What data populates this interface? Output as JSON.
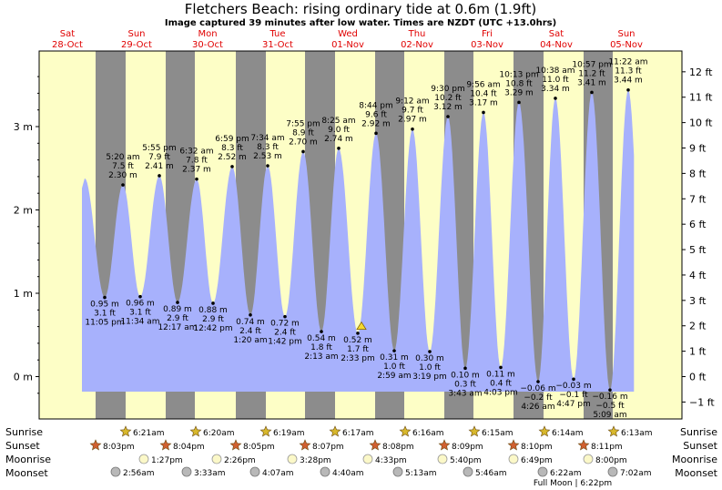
{
  "title": "Fletchers Beach: rising  ordinary tide at 0.6m (1.9ft)",
  "subtitle": "Image captured 39 minutes after low water. Times are NZDT (UTC +13.0hrs)",
  "days": [
    {
      "dow": "Sat",
      "date": "28-Oct"
    },
    {
      "dow": "Sun",
      "date": "29-Oct"
    },
    {
      "dow": "Mon",
      "date": "30-Oct"
    },
    {
      "dow": "Tue",
      "date": "31-Oct"
    },
    {
      "dow": "Wed",
      "date": "01-Nov"
    },
    {
      "dow": "Thu",
      "date": "02-Nov"
    },
    {
      "dow": "Fri",
      "date": "03-Nov"
    },
    {
      "dow": "Sat",
      "date": "04-Nov"
    },
    {
      "dow": "Sun",
      "date": "05-Nov"
    }
  ],
  "left_axis_ticks": [
    "3 m",
    "2 m",
    "1 m",
    "0 m"
  ],
  "right_axis_ticks": [
    "12 ft",
    "11 ft",
    "10 ft",
    "9 ft",
    "8 ft",
    "7 ft",
    "6 ft",
    "5 ft",
    "4 ft",
    "3 ft",
    "2 ft",
    "1 ft",
    "0 ft",
    "−1 ft"
  ],
  "row_labels": {
    "sunrise": "Sunrise",
    "sunset": "Sunset",
    "moonrise": "Moonrise",
    "moonset": "Moonset"
  },
  "sunrise": [
    "6:21am",
    "6:20am",
    "6:19am",
    "6:17am",
    "6:16am",
    "6:15am",
    "6:14am",
    "6:13am"
  ],
  "sunset": [
    "8:03pm",
    "8:04pm",
    "8:05pm",
    "8:07pm",
    "8:08pm",
    "8:09pm",
    "8:10pm",
    "8:11pm"
  ],
  "moonrise": [
    "1:27pm",
    "2:26pm",
    "3:28pm",
    "4:33pm",
    "5:40pm",
    "6:49pm",
    "8:00pm"
  ],
  "moonset": [
    "2:56am",
    "3:33am",
    "4:07am",
    "4:40am",
    "5:13am",
    "5:46am",
    "6:22am",
    "7:02am"
  ],
  "full_moon": "Full Moon | 6:22pm",
  "colors": {
    "water": "#a7b1fc",
    "day_bg": "#fdfec6",
    "night_bg": "#8c8c8c",
    "sun": "#d8b82c",
    "sunset": "#d06030",
    "day_text": "#e00000"
  },
  "chart_data": {
    "type": "area",
    "title": "Fletchers Beach: rising  ordinary tide at 0.6m (1.9ft)",
    "ylabel": "",
    "ylim_m": [
      -0.2,
      3.95
    ],
    "current": {
      "height_m": 0.6,
      "height_ft": 1.9,
      "state": "rising"
    },
    "extrema": [
      {
        "type": "high",
        "time": "",
        "height_m": 2.38,
        "label": ""
      },
      {
        "type": "low",
        "time": "11:05 pm",
        "height_m": 0.95,
        "ft": "3.1 ft"
      },
      {
        "type": "high",
        "time": "5:20 am",
        "height_m": 2.3,
        "ft": "7.5 ft"
      },
      {
        "type": "low",
        "time": "11:34 am",
        "height_m": 0.96,
        "ft": "3.1 ft"
      },
      {
        "type": "high",
        "time": "5:55 pm",
        "height_m": 2.41,
        "ft": "7.9 ft"
      },
      {
        "type": "low",
        "time": "12:17 am",
        "height_m": 0.89,
        "ft": "2.9 ft"
      },
      {
        "type": "high",
        "time": "6:32 am",
        "height_m": 2.37,
        "ft": "7.8 ft"
      },
      {
        "type": "low",
        "time": "12:42 pm",
        "height_m": 0.88,
        "ft": "2.9 ft"
      },
      {
        "type": "high",
        "time": "6:59 pm",
        "height_m": 2.52,
        "ft": "8.3 ft"
      },
      {
        "type": "low",
        "time": "1:20 am",
        "height_m": 0.74,
        "ft": "2.4 ft"
      },
      {
        "type": "high",
        "time": "7:34 am",
        "height_m": 2.53,
        "ft": "8.3 ft"
      },
      {
        "type": "low",
        "time": "1:42 pm",
        "height_m": 0.72,
        "ft": "2.4 ft"
      },
      {
        "type": "high",
        "time": "7:55 pm",
        "height_m": 2.7,
        "ft": "8.9 ft"
      },
      {
        "type": "low",
        "time": "2:13 am",
        "height_m": 0.54,
        "ft": "1.8 ft"
      },
      {
        "type": "high",
        "time": "8:25 am",
        "height_m": 2.74,
        "ft": "9.0 ft"
      },
      {
        "type": "low",
        "time": "2:33 pm",
        "height_m": 0.52,
        "ft": "1.7 ft"
      },
      {
        "type": "high",
        "time": "8:44 pm",
        "height_m": 2.92,
        "ft": "9.6 ft"
      },
      {
        "type": "low",
        "time": "2:59 am",
        "height_m": 0.31,
        "ft": "1.0 ft"
      },
      {
        "type": "high",
        "time": "9:12 am",
        "height_m": 2.97,
        "ft": "9.7 ft"
      },
      {
        "type": "low",
        "time": "3:19 pm",
        "height_m": 0.3,
        "ft": "1.0 ft"
      },
      {
        "type": "high",
        "time": "9:30 pm",
        "height_m": 3.12,
        "ft": "10.2 ft"
      },
      {
        "type": "low",
        "time": "3:43 am",
        "height_m": 0.1,
        "ft": "0.3 ft"
      },
      {
        "type": "high",
        "time": "9:56 am",
        "height_m": 3.17,
        "ft": "10.4 ft"
      },
      {
        "type": "low",
        "time": "4:03 pm",
        "height_m": 0.11,
        "ft": "0.4 ft"
      },
      {
        "type": "high",
        "time": "10:13 pm",
        "height_m": 3.29,
        "ft": "10.8 ft"
      },
      {
        "type": "low",
        "time": "4:26 am",
        "height_m": -0.06,
        "ft": "−0.2 ft"
      },
      {
        "type": "high",
        "time": "10:38 am",
        "height_m": 3.34,
        "ft": "11.0 ft"
      },
      {
        "type": "low",
        "time": "4:47 pm",
        "height_m": -0.03,
        "ft": "−0.1 ft"
      },
      {
        "type": "high",
        "time": "10:57 pm",
        "height_m": 3.41,
        "ft": "11.2 ft"
      },
      {
        "type": "low",
        "time": "5:09 am",
        "height_m": -0.16,
        "ft": "−0.5 ft"
      },
      {
        "type": "high",
        "time": "11:22 am",
        "height_m": 3.44,
        "ft": "11.3 ft"
      }
    ]
  }
}
